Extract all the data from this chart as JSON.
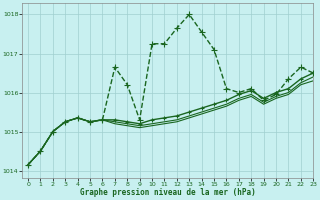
{
  "title": "Graphe pression niveau de la mer (hPa)",
  "background_color": "#c8f0f0",
  "grid_color": "#a0d0d0",
  "line_color": "#1a6620",
  "xlim": [
    -0.5,
    23
  ],
  "ylim": [
    1013.8,
    1018.3
  ],
  "yticks": [
    1014,
    1015,
    1016,
    1017,
    1018
  ],
  "xticks": [
    0,
    1,
    2,
    3,
    4,
    5,
    6,
    7,
    8,
    9,
    10,
    11,
    12,
    13,
    14,
    15,
    16,
    17,
    18,
    19,
    20,
    21,
    22,
    23
  ],
  "series": [
    {
      "x": [
        0,
        1,
        2,
        3,
        4,
        5,
        6,
        7,
        8,
        9,
        10,
        11,
        12,
        13,
        14,
        15,
        16,
        17,
        18,
        19,
        20,
        21,
        22,
        23
      ],
      "y": [
        1014.15,
        1014.5,
        1015.0,
        1015.25,
        1015.35,
        1015.25,
        1015.3,
        1016.65,
        1016.2,
        1015.3,
        1017.25,
        1017.25,
        1017.65,
        1018.0,
        1017.55,
        1017.1,
        1016.1,
        1016.0,
        1016.1,
        1015.8,
        1015.95,
        1016.35,
        1016.65,
        1016.5
      ],
      "marker": "+",
      "markersize": 4,
      "linewidth": 1.0,
      "linestyle": "--"
    },
    {
      "x": [
        0,
        1,
        2,
        3,
        4,
        5,
        6,
        7,
        8,
        9,
        10,
        11,
        12,
        13,
        14,
        15,
        16,
        17,
        18,
        19,
        20,
        21,
        22,
        23
      ],
      "y": [
        1014.15,
        1014.5,
        1015.0,
        1015.25,
        1015.35,
        1015.25,
        1015.3,
        1015.3,
        1015.25,
        1015.2,
        1015.3,
        1015.35,
        1015.4,
        1015.5,
        1015.6,
        1015.7,
        1015.8,
        1015.95,
        1016.05,
        1015.85,
        1016.0,
        1016.1,
        1016.35,
        1016.5
      ],
      "marker": "+",
      "markersize": 3,
      "linewidth": 1.0,
      "linestyle": "-"
    },
    {
      "x": [
        0,
        1,
        2,
        3,
        4,
        5,
        6,
        7,
        8,
        9,
        10,
        11,
        12,
        13,
        14,
        15,
        16,
        17,
        18,
        19,
        20,
        21,
        22,
        23
      ],
      "y": [
        1014.15,
        1014.5,
        1015.0,
        1015.25,
        1015.35,
        1015.25,
        1015.3,
        1015.25,
        1015.2,
        1015.15,
        1015.2,
        1015.25,
        1015.3,
        1015.4,
        1015.5,
        1015.6,
        1015.7,
        1015.85,
        1015.95,
        1015.75,
        1015.9,
        1016.0,
        1016.25,
        1016.4
      ],
      "marker": null,
      "markersize": 0,
      "linewidth": 0.8,
      "linestyle": "-"
    },
    {
      "x": [
        0,
        1,
        2,
        3,
        4,
        5,
        6,
        7,
        8,
        9,
        10,
        11,
        12,
        13,
        14,
        15,
        16,
        17,
        18,
        19,
        20,
        21,
        22,
        23
      ],
      "y": [
        1014.15,
        1014.5,
        1015.0,
        1015.25,
        1015.35,
        1015.25,
        1015.3,
        1015.2,
        1015.15,
        1015.1,
        1015.15,
        1015.2,
        1015.25,
        1015.35,
        1015.45,
        1015.55,
        1015.65,
        1015.8,
        1015.9,
        1015.7,
        1015.85,
        1015.95,
        1016.2,
        1016.3
      ],
      "marker": null,
      "markersize": 0,
      "linewidth": 0.8,
      "linestyle": "-"
    }
  ]
}
